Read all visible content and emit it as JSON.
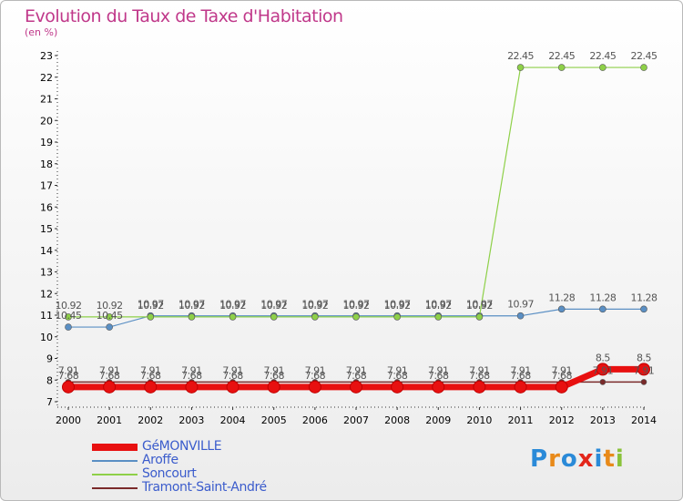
{
  "title": "Evolution du Taux de Taxe d'Habitation",
  "subtitle": "(en %)",
  "logo": {
    "text": "Proxiti",
    "colors": [
      "#2a8ad8",
      "#e88a1a",
      "#2a8ad8",
      "#e3261a",
      "#2a8ad8",
      "#e88a1a",
      "#8ac23a"
    ]
  },
  "chart_data": {
    "type": "line",
    "x": [
      2000,
      2001,
      2002,
      2003,
      2004,
      2005,
      2006,
      2007,
      2008,
      2009,
      2010,
      2011,
      2012,
      2013,
      2014
    ],
    "ylim": [
      7,
      23
    ],
    "yticks": [
      7,
      8,
      9,
      10,
      11,
      12,
      13,
      14,
      15,
      16,
      17,
      18,
      19,
      20,
      21,
      22,
      23
    ],
    "grid": false,
    "legend_position": "bottom-left",
    "series": [
      {
        "name": "Tramont-Saint-André",
        "color": "#7a2a2a",
        "width": 1.5,
        "marker_r": 3,
        "values": [
          7.91,
          7.91,
          7.91,
          7.91,
          7.91,
          7.91,
          7.91,
          7.91,
          7.91,
          7.91,
          7.91,
          7.91,
          7.91,
          7.91,
          7.91
        ],
        "labels": [
          "7.91",
          "7.91",
          "7.91",
          "7.91",
          "7.91",
          "7.91",
          "7.91",
          "7.91",
          "7.91",
          "7.91",
          "7.91",
          "7.91",
          "7.91",
          "7.91",
          "7.91"
        ]
      },
      {
        "name": "Aroffe",
        "color": "#5a8fc4",
        "width": 1.2,
        "marker_r": 3.5,
        "values": [
          10.45,
          10.45,
          10.97,
          10.97,
          10.97,
          10.97,
          10.97,
          10.97,
          10.97,
          10.97,
          10.97,
          10.97,
          11.28,
          11.28,
          11.28
        ],
        "labels": [
          "10.45",
          "10.45",
          "10.97",
          "10.97",
          "10.97",
          "10.97",
          "10.97",
          "10.97",
          "10.97",
          "10.97",
          "10.97",
          "10.97",
          "11.28",
          "11.28",
          "11.28"
        ]
      },
      {
        "name": "Soncourt",
        "color": "#8ed048",
        "width": 1.2,
        "marker_r": 3.5,
        "values": [
          10.92,
          10.92,
          10.92,
          10.92,
          10.92,
          10.92,
          10.92,
          10.92,
          10.92,
          10.92,
          10.92,
          22.45,
          22.45,
          22.45,
          22.45
        ],
        "labels": [
          "10.92",
          "10.92",
          "10.92",
          "10.92",
          "10.92",
          "10.92",
          "10.92",
          "10.92",
          "10.92",
          "10.92",
          "10.92",
          "22.45",
          "22.45",
          "22.45",
          "22.45"
        ]
      },
      {
        "name": "GéMONVILLE",
        "color": "#e81010",
        "width": 7,
        "marker_r": 6.5,
        "values": [
          7.68,
          7.68,
          7.68,
          7.68,
          7.68,
          7.68,
          7.68,
          7.68,
          7.68,
          7.68,
          7.68,
          7.68,
          7.68,
          8.5,
          8.5
        ],
        "labels": [
          "7.68",
          "7.68",
          "7.68",
          "7.68",
          "7.68",
          "7.68",
          "7.68",
          "7.68",
          "7.68",
          "7.68",
          "7.68",
          "7.68",
          "7.68",
          "8.5",
          "8.5"
        ]
      }
    ],
    "legend_order": [
      "GéMONVILLE",
      "Aroffe",
      "Soncourt",
      "Tramont-Saint-André"
    ]
  }
}
